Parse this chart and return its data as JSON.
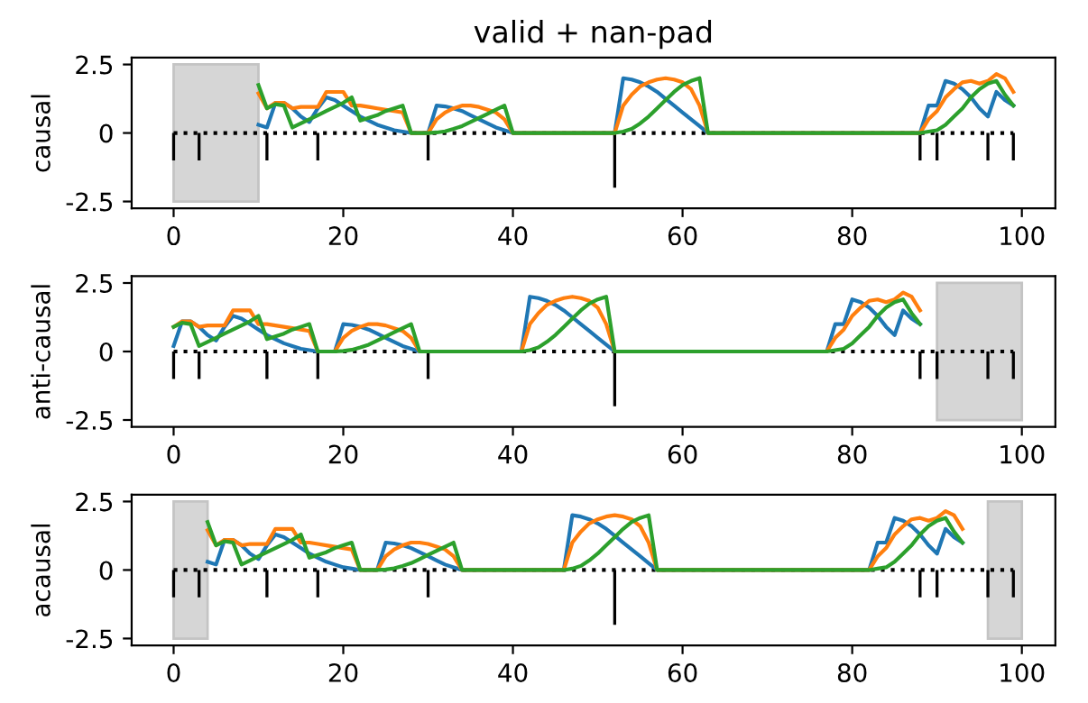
{
  "chart_data": [
    {
      "type": "line",
      "title": "valid + nan-pad",
      "ylabel": "causal",
      "xlim": [
        -4.95,
        103.95
      ],
      "ylim": [
        -2.75,
        2.75
      ],
      "xticks": [
        0,
        20,
        40,
        60,
        80,
        100
      ],
      "yticks": [
        -2.5,
        0,
        2.5
      ],
      "bands": [
        {
          "axis": "x",
          "from": 0,
          "to": 10,
          "color": "#d6d6d6"
        }
      ],
      "series": [
        {
          "type": "bar",
          "color": "#000000",
          "x": [
            0,
            3,
            11,
            17,
            30,
            52,
            88,
            90,
            96,
            99
          ],
          "values": [
            -1,
            -1,
            -1,
            -1,
            -1,
            -2,
            -1,
            -1,
            -1,
            -1
          ]
        },
        {
          "line_style": "dotted",
          "color": "#000000",
          "x": [
            0,
            99
          ],
          "values": [
            0,
            0
          ]
        },
        {
          "color": "#1f77b4",
          "x": [
            10,
            11,
            12,
            13,
            14,
            15,
            16,
            17,
            18,
            19,
            20,
            21,
            22,
            23,
            24,
            25,
            26,
            27,
            28,
            29,
            30,
            31,
            32,
            33,
            34,
            35,
            36,
            37,
            38,
            39,
            40,
            52,
            53,
            54,
            55,
            56,
            57,
            58,
            59,
            60,
            61,
            62,
            63,
            88,
            89,
            90,
            91,
            92,
            93,
            94,
            95,
            96,
            97,
            98,
            99
          ],
          "values": [
            0.3,
            0.2,
            1.1,
            1.1,
            0.9,
            0.6,
            0.4,
            0.9,
            1.3,
            1.2,
            1.0,
            0.8,
            0.6,
            0.45,
            0.3,
            0.2,
            0.1,
            0.05,
            0,
            0,
            0,
            1.0,
            0.97,
            0.9,
            0.8,
            0.65,
            0.5,
            0.35,
            0.2,
            0.1,
            0,
            0,
            2.0,
            1.95,
            1.85,
            1.7,
            1.5,
            1.25,
            1.0,
            0.75,
            0.5,
            0.25,
            0,
            0,
            1.0,
            1.0,
            1.9,
            1.8,
            1.6,
            1.3,
            0.9,
            0.6,
            1.5,
            1.2,
            1.0
          ]
        },
        {
          "color": "#ff7f0e",
          "x": [
            10,
            11,
            12,
            13,
            14,
            15,
            16,
            17,
            18,
            19,
            20,
            21,
            22,
            23,
            24,
            25,
            26,
            27,
            28,
            29,
            30,
            31,
            32,
            33,
            34,
            35,
            36,
            37,
            38,
            39,
            40,
            52,
            53,
            54,
            55,
            56,
            57,
            58,
            59,
            60,
            61,
            62,
            63,
            88,
            89,
            90,
            91,
            92,
            93,
            94,
            95,
            96,
            97,
            98,
            99
          ],
          "values": [
            1.45,
            0.9,
            1.1,
            1.1,
            0.9,
            0.95,
            0.95,
            0.95,
            1.5,
            1.5,
            1.5,
            1.0,
            1.0,
            0.95,
            0.9,
            0.85,
            0.8,
            0.75,
            0,
            0,
            0,
            0.5,
            0.75,
            0.9,
            1.0,
            1.0,
            0.95,
            0.85,
            0.75,
            0.5,
            0,
            0,
            1.0,
            1.4,
            1.7,
            1.85,
            1.95,
            2.0,
            1.95,
            1.85,
            1.6,
            1.0,
            0,
            0,
            0.5,
            0.8,
            1.3,
            1.6,
            1.85,
            1.9,
            1.8,
            1.9,
            2.15,
            2.0,
            1.5
          ]
        },
        {
          "color": "#2ca02c",
          "x": [
            10,
            11,
            12,
            13,
            14,
            15,
            16,
            17,
            18,
            19,
            20,
            21,
            22,
            23,
            24,
            25,
            26,
            27,
            28,
            29,
            30,
            31,
            32,
            33,
            34,
            35,
            36,
            37,
            38,
            39,
            40,
            52,
            53,
            54,
            55,
            56,
            57,
            58,
            59,
            60,
            61,
            62,
            63,
            88,
            89,
            90,
            91,
            92,
            93,
            94,
            95,
            96,
            97,
            98,
            99
          ],
          "values": [
            1.75,
            0.9,
            1.05,
            1.0,
            0.2,
            0.35,
            0.5,
            0.65,
            0.8,
            0.95,
            1.1,
            1.3,
            0.45,
            0.55,
            0.65,
            0.8,
            0.9,
            1.0,
            0,
            0,
            0,
            0.02,
            0.06,
            0.15,
            0.25,
            0.4,
            0.55,
            0.7,
            0.85,
            1.0,
            0,
            0,
            0.05,
            0.15,
            0.35,
            0.6,
            0.9,
            1.2,
            1.5,
            1.75,
            1.9,
            2.0,
            0,
            0,
            0.05,
            0.1,
            0.3,
            0.6,
            0.9,
            1.3,
            1.6,
            1.8,
            1.9,
            1.4,
            1.0
          ]
        }
      ]
    },
    {
      "type": "line",
      "ylabel": "anti-causal",
      "xlim": [
        -4.95,
        103.95
      ],
      "ylim": [
        -2.75,
        2.75
      ],
      "xticks": [
        0,
        20,
        40,
        60,
        80,
        100
      ],
      "yticks": [
        -2.5,
        0,
        2.5
      ],
      "bands": [
        {
          "axis": "x",
          "from": 90,
          "to": 100,
          "color": "#d6d6d6"
        }
      ],
      "series": [
        {
          "type": "bar",
          "color": "#000000",
          "x": [
            0,
            3,
            11,
            17,
            30,
            52,
            88,
            90,
            96,
            99
          ],
          "values": [
            -1,
            -1,
            -1,
            -1,
            -1,
            -2,
            -1,
            -1,
            -1,
            -1
          ]
        },
        {
          "line_style": "dotted",
          "color": "#000000",
          "x": [
            0,
            99
          ],
          "values": [
            0,
            0
          ]
        },
        {
          "color": "#1f77b4",
          "x": [
            0,
            1,
            2,
            3,
            4,
            5,
            6,
            7,
            8,
            9,
            10,
            11,
            12,
            13,
            14,
            15,
            16,
            17,
            18,
            19,
            20,
            21,
            22,
            23,
            24,
            25,
            26,
            27,
            28,
            29,
            41,
            42,
            43,
            44,
            45,
            46,
            47,
            48,
            49,
            50,
            51,
            52,
            77,
            78,
            79,
            80,
            81,
            82,
            83,
            84,
            85,
            86,
            87,
            88
          ],
          "values": [
            0.2,
            1.1,
            1.1,
            0.9,
            0.6,
            0.4,
            0.9,
            1.3,
            1.2,
            1.0,
            0.8,
            0.6,
            0.45,
            0.3,
            0.2,
            0.1,
            0.05,
            0,
            0,
            0,
            1.0,
            0.97,
            0.9,
            0.8,
            0.65,
            0.5,
            0.35,
            0.2,
            0.1,
            0,
            0,
            2.0,
            1.95,
            1.85,
            1.7,
            1.5,
            1.25,
            1.0,
            0.75,
            0.5,
            0.25,
            0,
            0,
            1.0,
            1.0,
            1.9,
            1.8,
            1.6,
            1.3,
            0.9,
            0.6,
            1.5,
            1.2,
            1.0
          ]
        },
        {
          "color": "#ff7f0e",
          "x": [
            0,
            1,
            2,
            3,
            4,
            5,
            6,
            7,
            8,
            9,
            10,
            11,
            12,
            13,
            14,
            15,
            16,
            17,
            18,
            19,
            20,
            21,
            22,
            23,
            24,
            25,
            26,
            27,
            28,
            29,
            41,
            42,
            43,
            44,
            45,
            46,
            47,
            48,
            49,
            50,
            51,
            52,
            77,
            78,
            79,
            80,
            81,
            82,
            83,
            84,
            85,
            86,
            87,
            88
          ],
          "values": [
            0.9,
            1.1,
            1.1,
            0.9,
            0.95,
            0.95,
            0.95,
            1.5,
            1.5,
            1.5,
            1.0,
            1.0,
            0.95,
            0.9,
            0.85,
            0.8,
            0.75,
            0,
            0,
            0,
            0.5,
            0.75,
            0.9,
            1.0,
            1.0,
            0.95,
            0.85,
            0.75,
            0.5,
            0,
            0,
            1.0,
            1.4,
            1.7,
            1.85,
            1.95,
            2.0,
            1.95,
            1.85,
            1.6,
            1.0,
            0,
            0,
            0.5,
            0.8,
            1.3,
            1.6,
            1.85,
            1.9,
            1.8,
            1.9,
            2.15,
            2.0,
            1.5
          ]
        },
        {
          "color": "#2ca02c",
          "x": [
            0,
            1,
            2,
            3,
            4,
            5,
            6,
            7,
            8,
            9,
            10,
            11,
            12,
            13,
            14,
            15,
            16,
            17,
            18,
            19,
            20,
            21,
            22,
            23,
            24,
            25,
            26,
            27,
            28,
            29,
            41,
            42,
            43,
            44,
            45,
            46,
            47,
            48,
            49,
            50,
            51,
            52,
            77,
            78,
            79,
            80,
            81,
            82,
            83,
            84,
            85,
            86,
            87,
            88
          ],
          "values": [
            0.9,
            1.05,
            1.0,
            0.2,
            0.35,
            0.5,
            0.65,
            0.8,
            0.95,
            1.1,
            1.3,
            0.45,
            0.55,
            0.65,
            0.8,
            0.9,
            1.0,
            0,
            0,
            0,
            0.02,
            0.06,
            0.15,
            0.25,
            0.4,
            0.55,
            0.7,
            0.85,
            1.0,
            0,
            0,
            0.05,
            0.15,
            0.35,
            0.6,
            0.9,
            1.2,
            1.5,
            1.75,
            1.9,
            2.0,
            0,
            0,
            0.05,
            0.1,
            0.3,
            0.6,
            0.9,
            1.3,
            1.6,
            1.8,
            1.9,
            1.4,
            1.0
          ]
        }
      ]
    },
    {
      "type": "line",
      "ylabel": "acausal",
      "xlim": [
        -4.95,
        103.95
      ],
      "ylim": [
        -2.75,
        2.75
      ],
      "xticks": [
        0,
        20,
        40,
        60,
        80,
        100
      ],
      "yticks": [
        -2.5,
        0,
        2.5
      ],
      "bands": [
        {
          "axis": "x",
          "from": 0,
          "to": 4,
          "color": "#d6d6d6"
        },
        {
          "axis": "x",
          "from": 96,
          "to": 100,
          "color": "#d6d6d6"
        }
      ],
      "series": [
        {
          "type": "bar",
          "color": "#000000",
          "x": [
            0,
            3,
            11,
            17,
            30,
            52,
            88,
            90,
            96,
            99
          ],
          "values": [
            -1,
            -1,
            -1,
            -1,
            -1,
            -2,
            -1,
            -1,
            -1,
            -1
          ]
        },
        {
          "type": "line",
          "line_style": "dotted",
          "color": "#000000",
          "x": [
            0,
            99
          ],
          "values": [
            0,
            0
          ]
        },
        {
          "type": "line",
          "color": "#1f77b4",
          "x": [
            4,
            5,
            6,
            7,
            8,
            9,
            10,
            11,
            12,
            13,
            14,
            15,
            16,
            17,
            18,
            19,
            20,
            21,
            22,
            23,
            24,
            25,
            26,
            27,
            28,
            29,
            30,
            31,
            32,
            33,
            34,
            46,
            47,
            48,
            49,
            50,
            51,
            52,
            53,
            54,
            55,
            56,
            57,
            82,
            83,
            84,
            85,
            86,
            87,
            88,
            89,
            90,
            91,
            92,
            93
          ],
          "values": [
            0.3,
            0.2,
            1.1,
            1.1,
            0.9,
            0.6,
            0.4,
            0.9,
            1.3,
            1.2,
            1.0,
            0.8,
            0.6,
            0.45,
            0.3,
            0.2,
            0.1,
            0.05,
            0,
            0,
            0,
            1.0,
            0.97,
            0.9,
            0.8,
            0.65,
            0.5,
            0.35,
            0.2,
            0.1,
            0,
            0,
            2.0,
            1.95,
            1.85,
            1.7,
            1.5,
            1.25,
            1.0,
            0.75,
            0.5,
            0.25,
            0,
            0,
            1.0,
            1.0,
            1.9,
            1.8,
            1.6,
            1.3,
            0.9,
            0.6,
            1.5,
            1.2,
            1.0
          ]
        },
        {
          "color": "#ff7f0e",
          "x": [
            4,
            5,
            6,
            7,
            8,
            9,
            10,
            11,
            12,
            13,
            14,
            15,
            16,
            17,
            18,
            19,
            20,
            21,
            22,
            23,
            24,
            25,
            26,
            27,
            28,
            29,
            30,
            31,
            32,
            33,
            34,
            46,
            47,
            48,
            49,
            50,
            51,
            52,
            53,
            54,
            55,
            56,
            57,
            82,
            83,
            84,
            85,
            86,
            87,
            88,
            89,
            90,
            91,
            92,
            93
          ],
          "values": [
            1.45,
            0.9,
            1.1,
            1.1,
            0.9,
            0.95,
            0.95,
            0.95,
            1.5,
            1.5,
            1.5,
            1.0,
            1.0,
            0.95,
            0.9,
            0.85,
            0.8,
            0.75,
            0,
            0,
            0,
            0.5,
            0.75,
            0.9,
            1.0,
            1.0,
            0.95,
            0.85,
            0.75,
            0.5,
            0,
            0,
            1.0,
            1.4,
            1.7,
            1.85,
            1.95,
            2.0,
            1.95,
            1.85,
            1.6,
            1.0,
            0,
            0,
            0.5,
            0.8,
            1.3,
            1.6,
            1.85,
            1.9,
            1.8,
            1.9,
            2.15,
            2.0,
            1.5
          ]
        },
        {
          "color": "#2ca02c",
          "x": [
            4,
            5,
            6,
            7,
            8,
            9,
            10,
            11,
            12,
            13,
            14,
            15,
            16,
            17,
            18,
            19,
            20,
            21,
            22,
            23,
            24,
            25,
            26,
            27,
            28,
            29,
            30,
            31,
            32,
            33,
            34,
            46,
            47,
            48,
            49,
            50,
            51,
            52,
            53,
            54,
            55,
            56,
            57,
            82,
            83,
            84,
            85,
            86,
            87,
            88,
            89,
            90,
            91,
            92,
            93
          ],
          "values": [
            1.75,
            0.9,
            1.05,
            1.0,
            0.2,
            0.35,
            0.5,
            0.65,
            0.8,
            0.95,
            1.1,
            1.3,
            0.45,
            0.55,
            0.65,
            0.8,
            0.9,
            1.0,
            0,
            0,
            0,
            0.02,
            0.06,
            0.15,
            0.25,
            0.4,
            0.55,
            0.7,
            0.85,
            1.0,
            0,
            0,
            0.05,
            0.15,
            0.35,
            0.6,
            0.9,
            1.2,
            1.5,
            1.75,
            1.9,
            2.0,
            0,
            0,
            0.05,
            0.1,
            0.3,
            0.6,
            0.9,
            1.3,
            1.6,
            1.8,
            1.9,
            1.4,
            1.0
          ]
        }
      ]
    }
  ]
}
